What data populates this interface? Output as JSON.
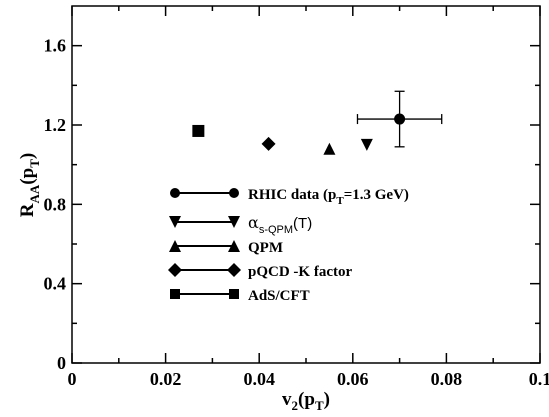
{
  "chart_data": {
    "type": "scatter",
    "xlabel": "v2(pT)",
    "ylabel": "RAA(pT)",
    "xlim": [
      0,
      0.1
    ],
    "ylim": [
      0,
      1.8
    ],
    "xticks": [
      {
        "value": 0,
        "label": "0"
      },
      {
        "value": 0.02,
        "label": "0.02"
      },
      {
        "value": 0.04,
        "label": "0.04"
      },
      {
        "value": 0.06,
        "label": "0.06"
      },
      {
        "value": 0.08,
        "label": "0.08"
      },
      {
        "value": 0.1,
        "label": "0.1"
      }
    ],
    "yticks": [
      {
        "value": 0,
        "label": "0"
      },
      {
        "value": 0.4,
        "label": "0.4"
      },
      {
        "value": 0.8,
        "label": "0.8"
      },
      {
        "value": 1.2,
        "label": "1.2"
      },
      {
        "value": 1.6,
        "label": "1.6"
      }
    ],
    "xminor_step": 0.01,
    "yminor_step": 0.2,
    "grid": false,
    "legend_position": "center",
    "series": [
      {
        "name": "RHIC data (pT=1.3 GeV)",
        "marker": "circle",
        "points": [
          {
            "x": 0.07,
            "y": 1.23,
            "xerr": 0.009,
            "yerr": 0.14
          }
        ]
      },
      {
        "name": "αs-QPM(T)",
        "marker": "triangle-down",
        "points": [
          {
            "x": 0.063,
            "y": 1.1
          }
        ]
      },
      {
        "name": "QPM",
        "marker": "triangle-up",
        "points": [
          {
            "x": 0.055,
            "y": 1.08
          }
        ]
      },
      {
        "name": "pQCD -K factor",
        "marker": "diamond",
        "points": [
          {
            "x": 0.042,
            "y": 1.105
          }
        ]
      },
      {
        "name": "AdS/CFT",
        "marker": "square",
        "points": [
          {
            "x": 0.027,
            "y": 1.17
          }
        ]
      }
    ]
  }
}
